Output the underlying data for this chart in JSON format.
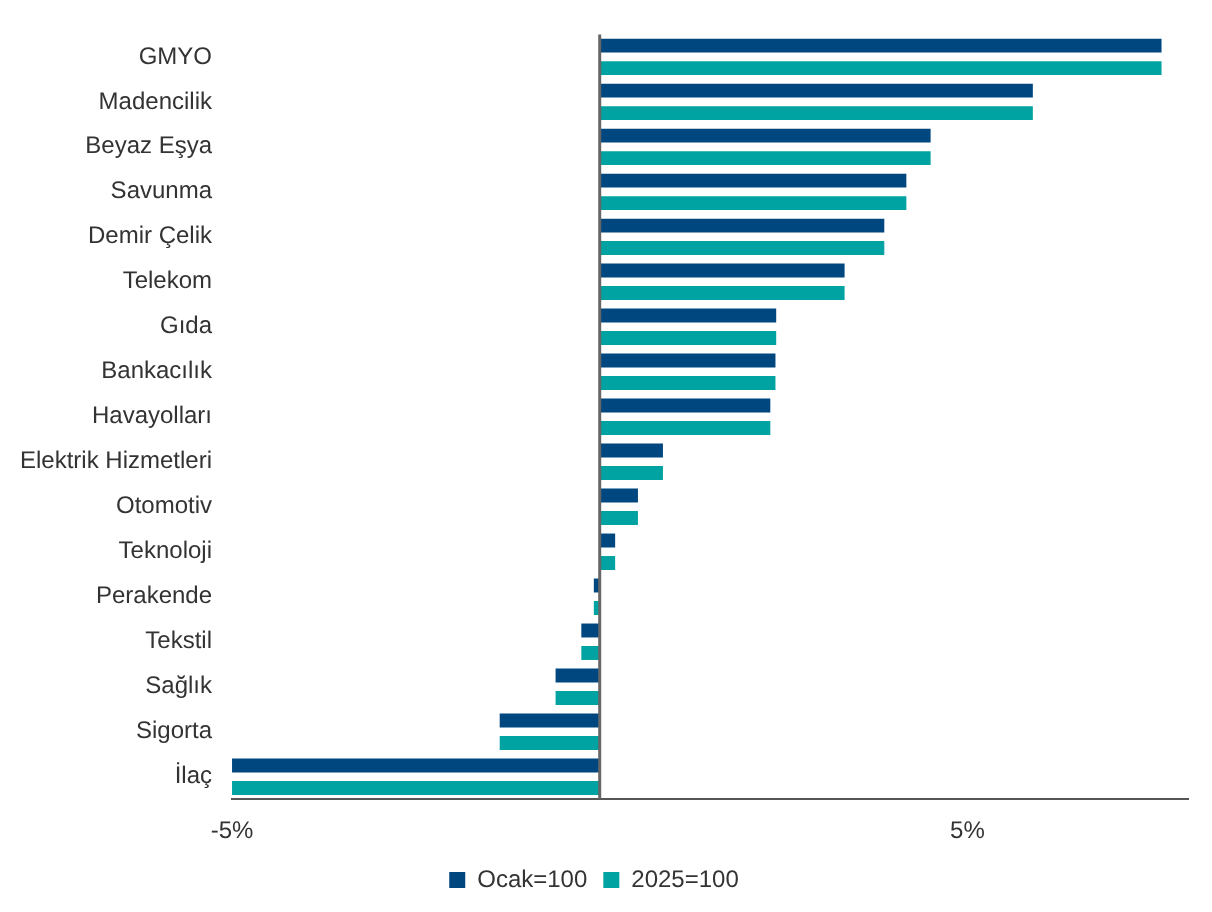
{
  "chart_data": {
    "type": "bar",
    "orientation": "horizontal",
    "categories": [
      "GMYO",
      "Madencilik",
      "Beyaz Eşya",
      "Savunma",
      "Demir Çelik",
      "Telekom",
      "Gıda",
      "Bankacılık",
      "Havayolları",
      "Elektrik Hizmetleri",
      "Otomotiv",
      "Teknoloji",
      "Perakende",
      "Tekstil",
      "Sağlık",
      "Sigorta",
      "İlaç"
    ],
    "series": [
      {
        "name": "Ocak=100",
        "color": "#00467f",
        "values": [
          7.64,
          5.89,
          4.5,
          4.17,
          3.87,
          3.33,
          2.4,
          2.39,
          2.32,
          0.86,
          0.52,
          0.21,
          -0.08,
          -0.25,
          -0.6,
          -1.36,
          -5.0
        ]
      },
      {
        "name": "2025=100",
        "color": "#00a3a1",
        "values": [
          7.64,
          5.89,
          4.5,
          4.17,
          3.87,
          3.33,
          2.4,
          2.39,
          2.32,
          0.86,
          0.52,
          0.21,
          -0.08,
          -0.25,
          -0.6,
          -1.36,
          -5.0
        ]
      }
    ],
    "xlim": [
      -5,
      8
    ],
    "xticks": [
      {
        "value": -5,
        "label": "-5%"
      },
      {
        "value": 5,
        "label": "5%"
      }
    ],
    "grid": false,
    "legend": "bottom"
  }
}
